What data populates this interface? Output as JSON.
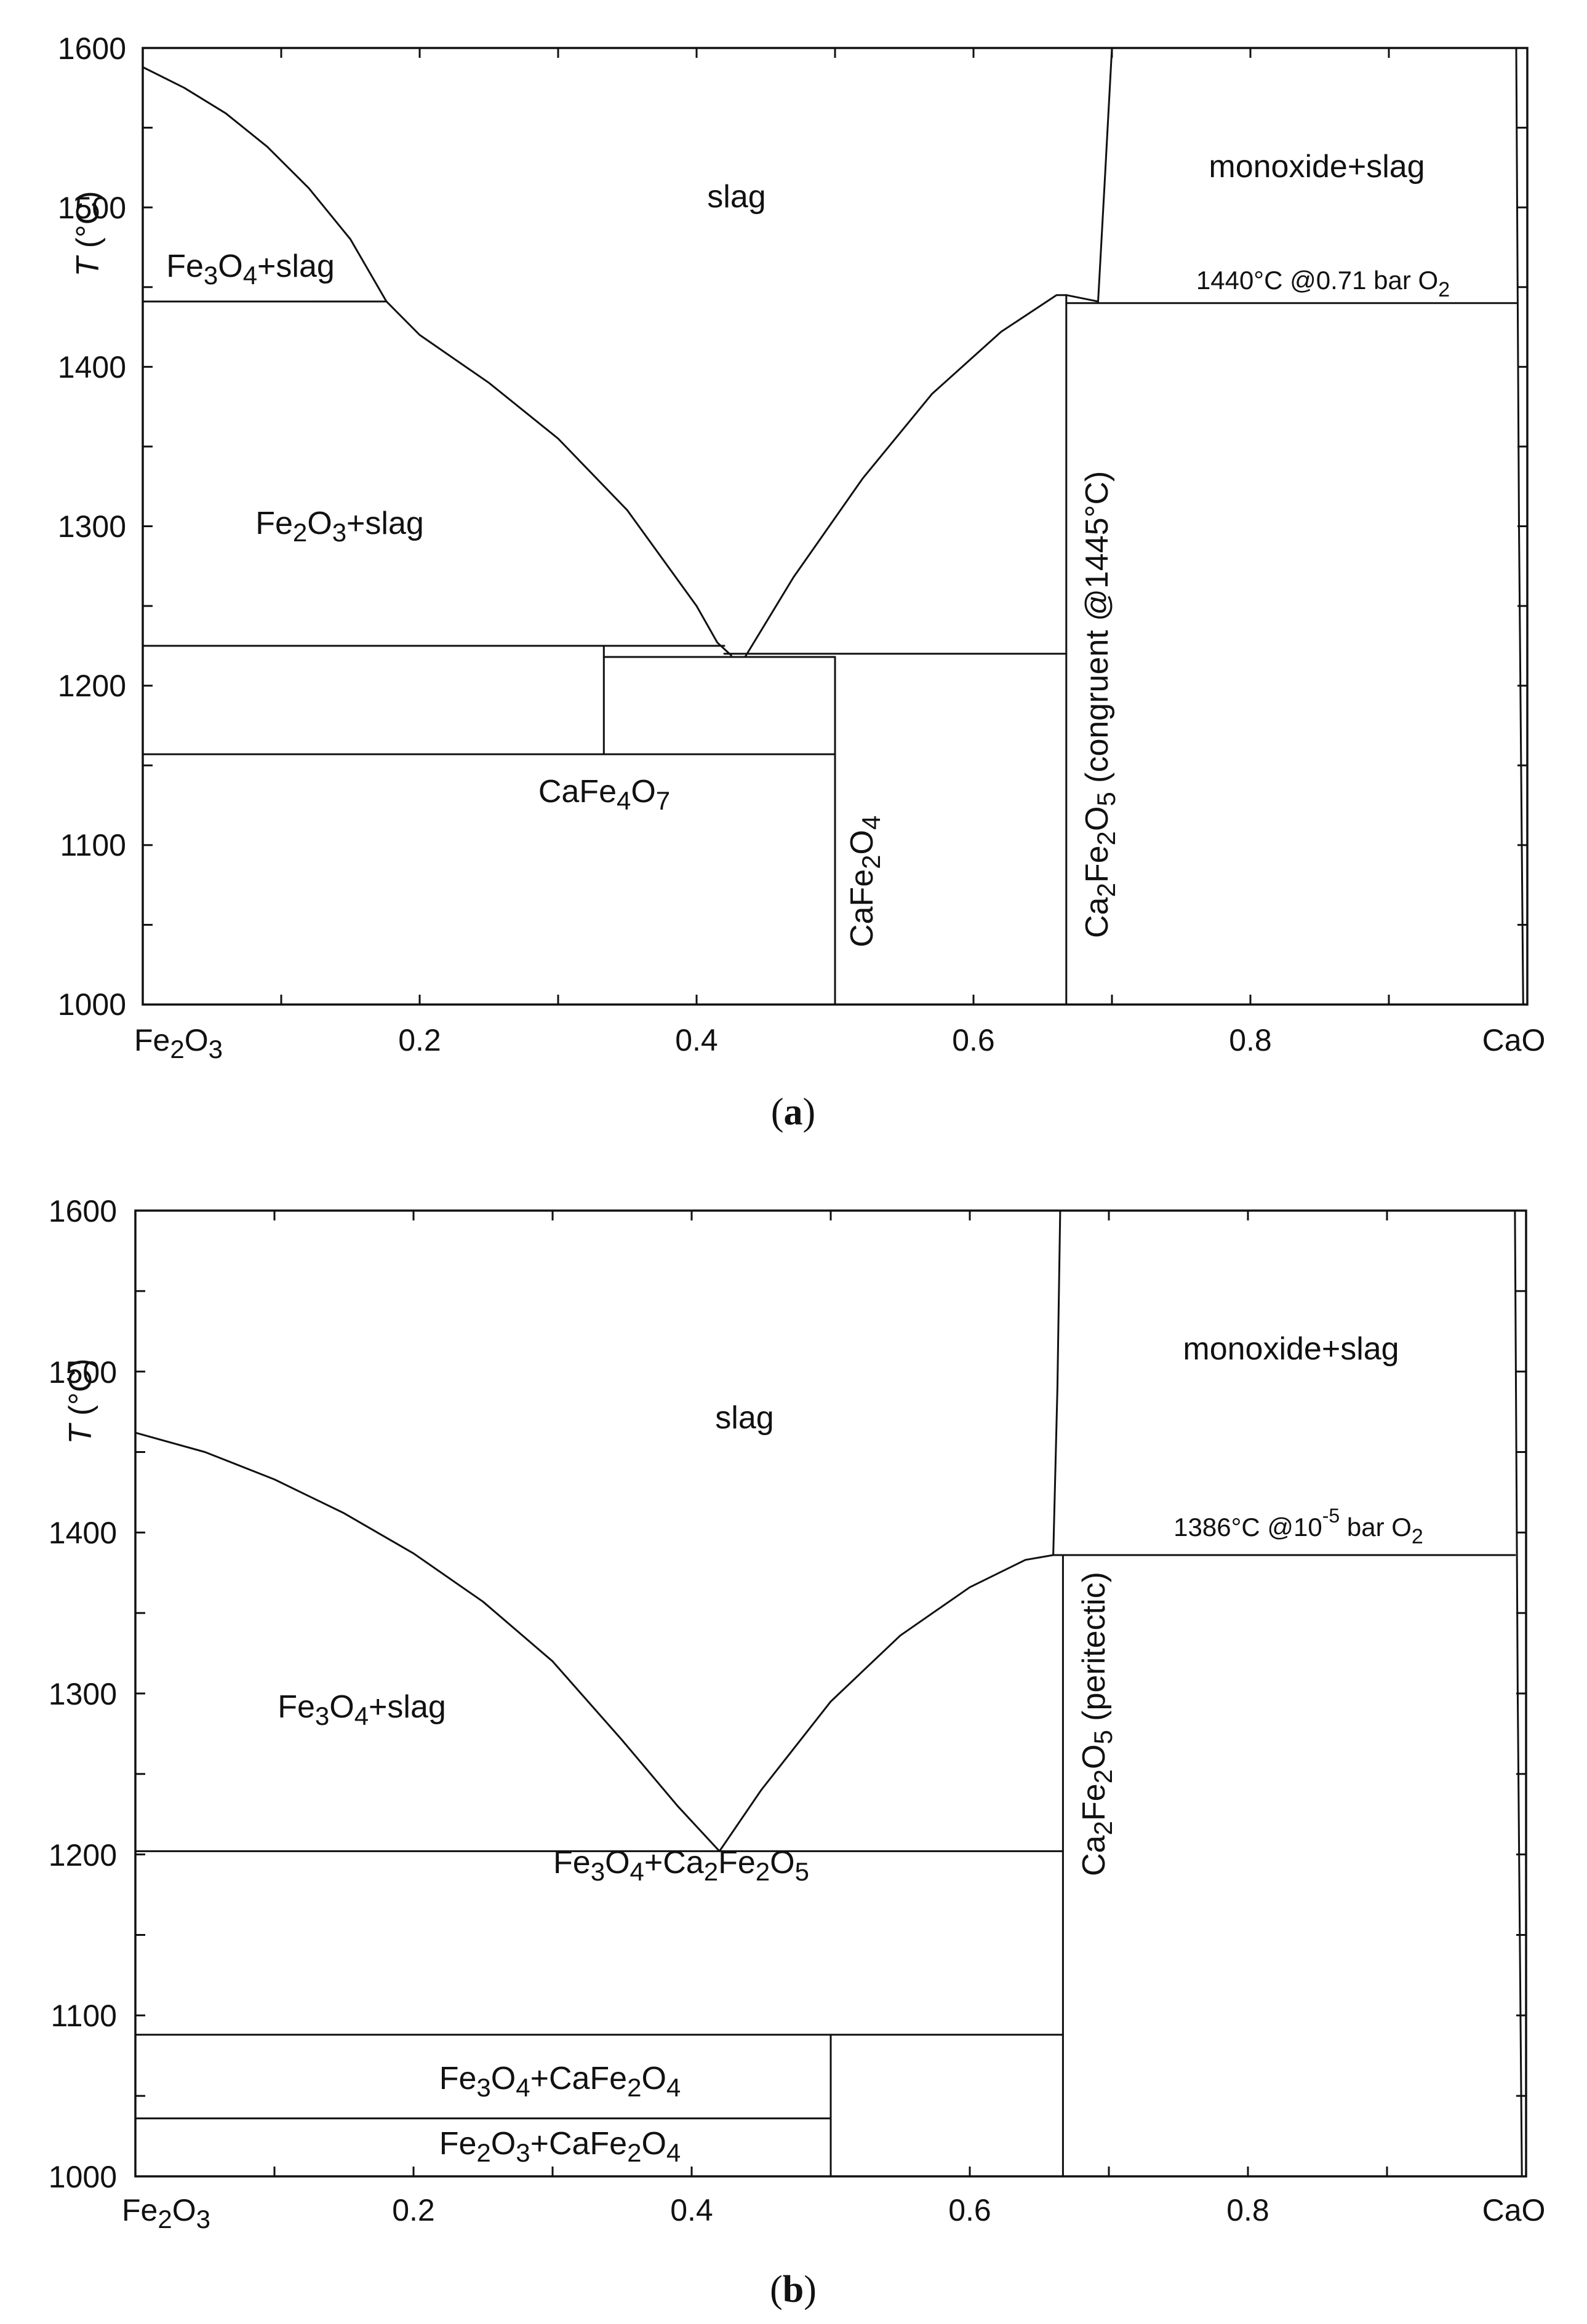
{
  "chart_data": [
    {
      "type": "line",
      "panel": "a",
      "caption_letter": "a",
      "caption_open": "(",
      "caption_close": ")",
      "ylabel_var": "T",
      "ylabel_unit": " (°C)",
      "xlim": [
        0,
        1
      ],
      "ylim": [
        1000,
        1600
      ],
      "yticks": [
        "1000",
        "1100",
        "1200",
        "1300",
        "1400",
        "1500",
        "1600"
      ],
      "xticks": [
        "0.2",
        "0.4",
        "0.6",
        "0.8"
      ],
      "x_end_labels": {
        "left": "Fe2O3",
        "right": "CaO"
      },
      "series": [
        {
          "name": "Fe2O3 liquidus",
          "x": [
            0.0,
            0.03,
            0.06,
            0.09,
            0.12,
            0.15,
            0.176
          ],
          "y": [
            1588,
            1575,
            1559,
            1538,
            1512,
            1480,
            1441
          ]
        },
        {
          "name": "Fe3O4 liquidus",
          "x": [
            0.176,
            0.2,
            0.25,
            0.3,
            0.35,
            0.4,
            0.415,
            0.425
          ],
          "y": [
            1441,
            1420,
            1390,
            1355,
            1310,
            1250,
            1227,
            1219
          ]
        },
        {
          "name": "Ca2Fe2O5 liquidus",
          "x": [
            0.435,
            0.47,
            0.52,
            0.57,
            0.62,
            0.66,
            0.667
          ],
          "y": [
            1218,
            1268,
            1330,
            1383,
            1422,
            1445,
            1445
          ]
        },
        {
          "name": "liquidus shoulder",
          "x": [
            0.667,
            0.69
          ],
          "y": [
            1445,
            1441
          ]
        },
        {
          "name": "monoxide liquidus",
          "x": [
            0.69,
            0.695,
            0.7
          ],
          "y": [
            1441,
            1520,
            1600
          ]
        },
        {
          "name": "CaO boundary",
          "x": [
            0.992,
            0.994,
            0.997
          ],
          "y": [
            1600,
            1300,
            1000
          ]
        },
        {
          "name": "Fe3O4 peritectic 1441",
          "x": [
            0.0,
            0.176
          ],
          "y": [
            1441,
            1441
          ]
        },
        {
          "name": "1440 isotherm",
          "x": [
            0.667,
            0.992
          ],
          "y": [
            1440,
            1440
          ]
        },
        {
          "name": "1225 isotherm",
          "x": [
            0.0,
            0.42
          ],
          "y": [
            1225,
            1225
          ]
        },
        {
          "name": "1218 isotherm",
          "x": [
            0.333,
            0.5
          ],
          "y": [
            1218,
            1218
          ]
        },
        {
          "name": "1220 eutectic",
          "x": [
            0.42,
            0.667
          ],
          "y": [
            1220,
            1220
          ]
        },
        {
          "name": "1157 isotherm",
          "x": [
            0.0,
            0.5
          ],
          "y": [
            1157,
            1157
          ]
        },
        {
          "name": "CaFe4O7 line",
          "x": [
            0.333,
            0.333
          ],
          "y": [
            1157,
            1225
          ]
        },
        {
          "name": "CaFe2O4 line",
          "x": [
            0.5,
            0.5
          ],
          "y": [
            1000,
            1218
          ]
        },
        {
          "name": "Ca2Fe2O5 line",
          "x": [
            0.667,
            0.667
          ],
          "y": [
            1000,
            1445
          ]
        }
      ],
      "labels": {
        "slag": "slag",
        "mono_slag": "monoxide+slag",
        "fe3o4_slag": {
          "p1": "Fe",
          "s1": "3",
          "p2": "O",
          "s2": "4",
          "p3": "+slag"
        },
        "fe2o3_slag": {
          "p1": "Fe",
          "s1": "2",
          "p2": "O",
          "s2": "3",
          "p3": "+slag"
        },
        "cafe4o7": {
          "p1": "CaFe",
          "s1": "4",
          "p2": "O",
          "s2": "7"
        },
        "cafe2o4": {
          "p1": "CaFe",
          "s1": "2",
          "p2": "O",
          "s2": "4"
        },
        "ca2fe2o5": {
          "p1": "Ca",
          "s1": "2",
          "p2": "Fe",
          "s2": "2",
          "p3": "O",
          "s3": "5",
          "p4": " (congruent @1445°C)"
        },
        "annot": {
          "p1": "1440°C @0.71 bar O",
          "s1": "2"
        },
        "xleft": {
          "p1": "Fe",
          "s1": "2",
          "p2": "O",
          "s2": "3"
        },
        "xright": "CaO"
      }
    },
    {
      "type": "line",
      "panel": "b",
      "caption_letter": "b",
      "caption_open": "(",
      "caption_close": ")",
      "ylabel_var": "T",
      "ylabel_unit": " (°C)",
      "xlim": [
        0,
        1
      ],
      "ylim": [
        1000,
        1600
      ],
      "yticks": [
        "1000",
        "1100",
        "1200",
        "1300",
        "1400",
        "1500",
        "1600"
      ],
      "xticks": [
        "0.2",
        "0.4",
        "0.6",
        "0.8"
      ],
      "x_end_labels": {
        "left": "Fe2O3",
        "right": "CaO"
      },
      "series": [
        {
          "name": "Fe3O4 liquidus",
          "x": [
            0.0,
            0.05,
            0.1,
            0.15,
            0.2,
            0.25,
            0.3,
            0.35,
            0.39,
            0.42
          ],
          "y": [
            1462,
            1450,
            1433,
            1412,
            1387,
            1357,
            1320,
            1271,
            1230,
            1202
          ]
        },
        {
          "name": "Ca2Fe2O5 liquidus",
          "x": [
            0.42,
            0.45,
            0.5,
            0.55,
            0.6,
            0.64,
            0.66
          ],
          "y": [
            1202,
            1240,
            1295,
            1336,
            1366,
            1383,
            1386
          ]
        },
        {
          "name": "monoxide liquidus",
          "x": [
            0.66,
            0.663,
            0.665
          ],
          "y": [
            1386,
            1490,
            1600
          ]
        },
        {
          "name": "CaO boundary",
          "x": [
            0.992,
            0.994,
            0.997
          ],
          "y": [
            1600,
            1300,
            1000
          ]
        },
        {
          "name": "1386 isotherm",
          "x": [
            0.66,
            0.992
          ],
          "y": [
            1386,
            1386
          ]
        },
        {
          "name": "1202 isotherm",
          "x": [
            0.0,
            0.667
          ],
          "y": [
            1202,
            1202
          ]
        },
        {
          "name": "1088 isotherm",
          "x": [
            0.0,
            0.667
          ],
          "y": [
            1088,
            1088
          ]
        },
        {
          "name": "1036 isotherm",
          "x": [
            0.0,
            0.5
          ],
          "y": [
            1036,
            1036
          ]
        },
        {
          "name": "CaFe2O4 line",
          "x": [
            0.5,
            0.5
          ],
          "y": [
            1000,
            1088
          ]
        },
        {
          "name": "Ca2Fe2O5 line",
          "x": [
            0.667,
            0.667
          ],
          "y": [
            1000,
            1386
          ]
        }
      ],
      "labels": {
        "slag": "slag",
        "mono_slag": "monoxide+slag",
        "fe3o4_slag": {
          "p1": "Fe",
          "s1": "3",
          "p2": "O",
          "s2": "4",
          "p3": "+slag"
        },
        "fe3o4_ca2fe2o5": {
          "p1": "Fe",
          "s1": "3",
          "p2": "O",
          "s2": "4",
          "p3": "+Ca",
          "s3": "2",
          "p4": "Fe",
          "s4": "2",
          "p5": "O",
          "s5": "5"
        },
        "fe3o4_cafe2o4": {
          "p1": "Fe",
          "s1": "3",
          "p2": "O",
          "s2": "4",
          "p3": "+CaFe",
          "s3": "2",
          "p4": "O",
          "s4": "4"
        },
        "fe2o3_cafe2o4": {
          "p1": "Fe",
          "s1": "2",
          "p2": "O",
          "s2": "3",
          "p3": "+CaFe",
          "s3": "2",
          "p4": "O",
          "s4": "4"
        },
        "ca2fe2o5": {
          "p1": "Ca",
          "s1": "2",
          "p2": "Fe",
          "s2": "2",
          "p3": "O",
          "s3": "5",
          "p4": " (peritectic)"
        },
        "annot": {
          "p1": "1386°C @10",
          "sup": "-5",
          "p2": " bar O",
          "s1": "2"
        },
        "xleft": {
          "p1": "Fe",
          "s1": "2",
          "p2": "O",
          "s2": "3"
        },
        "xright": "CaO"
      }
    }
  ]
}
